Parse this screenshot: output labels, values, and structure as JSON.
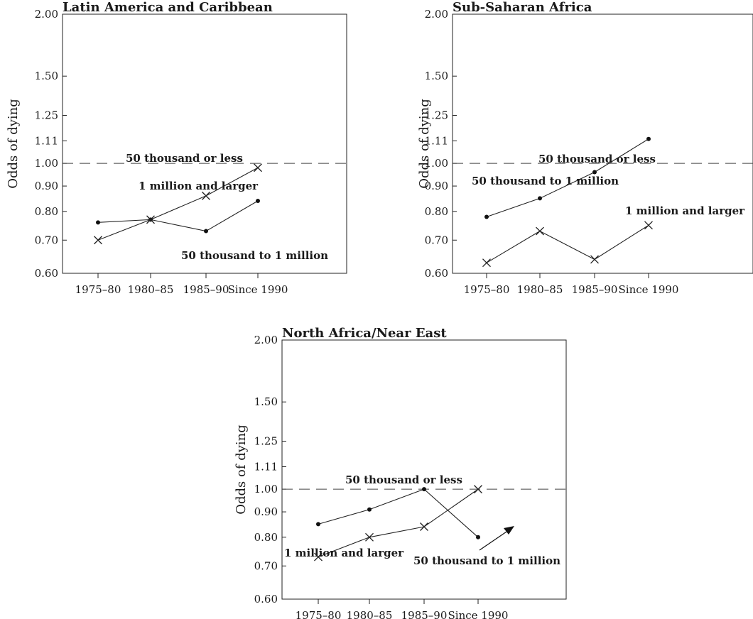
{
  "chart_data": [
    {
      "type": "line",
      "title": "Latin America and Caribbean",
      "ylabel": "Odds of dying",
      "xlabel": "",
      "categories": [
        "1975–80",
        "1980–85",
        "1985–90",
        "Since 1990"
      ],
      "yscale": "log",
      "ylim": [
        0.6,
        2.0
      ],
      "yticks": [
        "2.00",
        "1.50",
        "1.25",
        "1.11",
        "1.00",
        "0.90",
        "0.80",
        "0.70",
        "0.60"
      ],
      "reference_line": {
        "value": 1.0,
        "style": "dashed",
        "label": "50 thousand or less"
      },
      "series": [
        {
          "name": "50 thousand to 1 million",
          "marker": "dot",
          "values": [
            0.76,
            0.77,
            0.73,
            0.84
          ]
        },
        {
          "name": "1 million and larger",
          "marker": "x",
          "values": [
            0.7,
            0.77,
            0.86,
            0.98
          ]
        }
      ]
    },
    {
      "type": "line",
      "title": "Sub-Saharan Africa",
      "ylabel": "Odds of dying",
      "xlabel": "",
      "categories": [
        "1975–80",
        "1980–85",
        "1985–90",
        "Since 1990"
      ],
      "yscale": "log",
      "ylim": [
        0.6,
        2.0
      ],
      "yticks": [
        "2.00",
        "1.50",
        "1.25",
        "1.11",
        "1.00",
        "0.90",
        "0.80",
        "0.70",
        "0.60"
      ],
      "reference_line": {
        "value": 1.0,
        "style": "dashed",
        "label": "50 thousand or less"
      },
      "series": [
        {
          "name": "50 thousand to 1 million",
          "marker": "dot",
          "values": [
            0.78,
            0.85,
            0.96,
            1.12
          ]
        },
        {
          "name": "1 million and larger",
          "marker": "x",
          "values": [
            0.63,
            0.73,
            0.64,
            0.75
          ]
        }
      ]
    },
    {
      "type": "line",
      "title": "North Africa/Near East",
      "ylabel": "Odds of dying",
      "xlabel": "",
      "categories": [
        "1975–80",
        "1980–85",
        "1985–90",
        "Since 1990"
      ],
      "yscale": "log",
      "ylim": [
        0.6,
        2.0
      ],
      "yticks": [
        "2.00",
        "1.50",
        "1.25",
        "1.11",
        "1.00",
        "0.90",
        "0.80",
        "0.70",
        "0.60"
      ],
      "reference_line": {
        "value": 1.0,
        "style": "dashed",
        "label": "50 thousand or less"
      },
      "series": [
        {
          "name": "50 thousand to 1 million",
          "marker": "dot",
          "values": [
            0.85,
            0.91,
            1.0,
            0.8
          ]
        },
        {
          "name": "1 million and larger",
          "marker": "x",
          "values": [
            0.73,
            0.8,
            0.84,
            1.0
          ]
        }
      ]
    }
  ]
}
